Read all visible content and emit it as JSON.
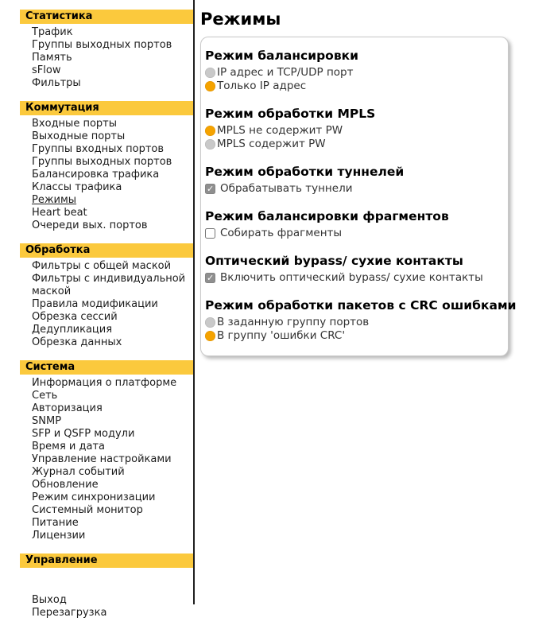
{
  "sidebar": {
    "sections": [
      {
        "title": "Статистика",
        "items": [
          {
            "label": "Трафик"
          },
          {
            "label": "Группы выходных портов"
          },
          {
            "label": "Память"
          },
          {
            "label": "sFlow"
          },
          {
            "label": "Фильтры"
          }
        ]
      },
      {
        "title": "Коммутация",
        "items": [
          {
            "label": "Входные порты"
          },
          {
            "label": "Выходные порты"
          },
          {
            "label": "Группы входных портов"
          },
          {
            "label": "Группы выходных портов"
          },
          {
            "label": "Балансировка трафика"
          },
          {
            "label": "Классы трафика"
          },
          {
            "label": "Режимы",
            "active": true
          },
          {
            "label": "Heart beat"
          },
          {
            "label": "Очереди вых. портов"
          }
        ]
      },
      {
        "title": "Обработка",
        "items": [
          {
            "label": "Фильтры с общей маской"
          },
          {
            "label": "Фильтры с индивидуальной маской"
          },
          {
            "label": "Правила модификации"
          },
          {
            "label": "Обрезка сессий"
          },
          {
            "label": "Дедупликация"
          },
          {
            "label": "Обрезка данных"
          }
        ]
      },
      {
        "title": "Система",
        "items": [
          {
            "label": "Информация о платформе"
          },
          {
            "label": "Сеть"
          },
          {
            "label": "Авторизация"
          },
          {
            "label": "SNMP"
          },
          {
            "label": "SFP и QSFP модули"
          },
          {
            "label": "Время и дата"
          },
          {
            "label": "Управление настройками"
          },
          {
            "label": "Журнал событий"
          },
          {
            "label": "Обновление"
          },
          {
            "label": "Режим синхронизации"
          },
          {
            "label": "Системный монитор"
          },
          {
            "label": "Питание"
          },
          {
            "label": "Лицензии"
          }
        ]
      },
      {
        "title": "Управление",
        "gap_before_items": true,
        "items": [
          {
            "label": "Выход"
          },
          {
            "label": "Перезагрузка"
          }
        ]
      }
    ]
  },
  "main": {
    "title": "Режимы",
    "groups": [
      {
        "heading": "Режим балансировки",
        "type": "radio",
        "options": [
          {
            "label": "IP адрес и TCP/UDP порт",
            "selected": false
          },
          {
            "label": "Только IP адрес",
            "selected": true
          }
        ]
      },
      {
        "heading": "Режим обработки MPLS",
        "type": "radio",
        "options": [
          {
            "label": "MPLS не содержит PW",
            "selected": true
          },
          {
            "label": "MPLS содержит PW",
            "selected": false
          }
        ]
      },
      {
        "heading": "Режим обработки туннелей",
        "type": "checkbox",
        "options": [
          {
            "label": "Обрабатывать туннели",
            "selected": true
          }
        ]
      },
      {
        "heading": "Режим балансировки фрагментов",
        "type": "checkbox",
        "options": [
          {
            "label": "Собирать фрагменты",
            "selected": false
          }
        ]
      },
      {
        "heading": "Оптический bypass/ сухие контакты",
        "type": "checkbox",
        "options": [
          {
            "label": "Включить оптический bypass/ сухие контакты",
            "selected": true
          }
        ]
      },
      {
        "heading": "Режим обработки пакетов с CRC ошибками",
        "type": "radio",
        "options": [
          {
            "label": "В заданную группу портов",
            "selected": false
          },
          {
            "label": "В группу 'ошибки CRC'",
            "selected": true
          }
        ]
      }
    ]
  },
  "colors": {
    "sidebar_header_bg": "#FBC93D",
    "radio_selected": "#F5A300",
    "radio_unselected": "#C9C9C9",
    "checkbox_checked_bg": "#8F8F8F",
    "divider": "#1F1F1F"
  }
}
